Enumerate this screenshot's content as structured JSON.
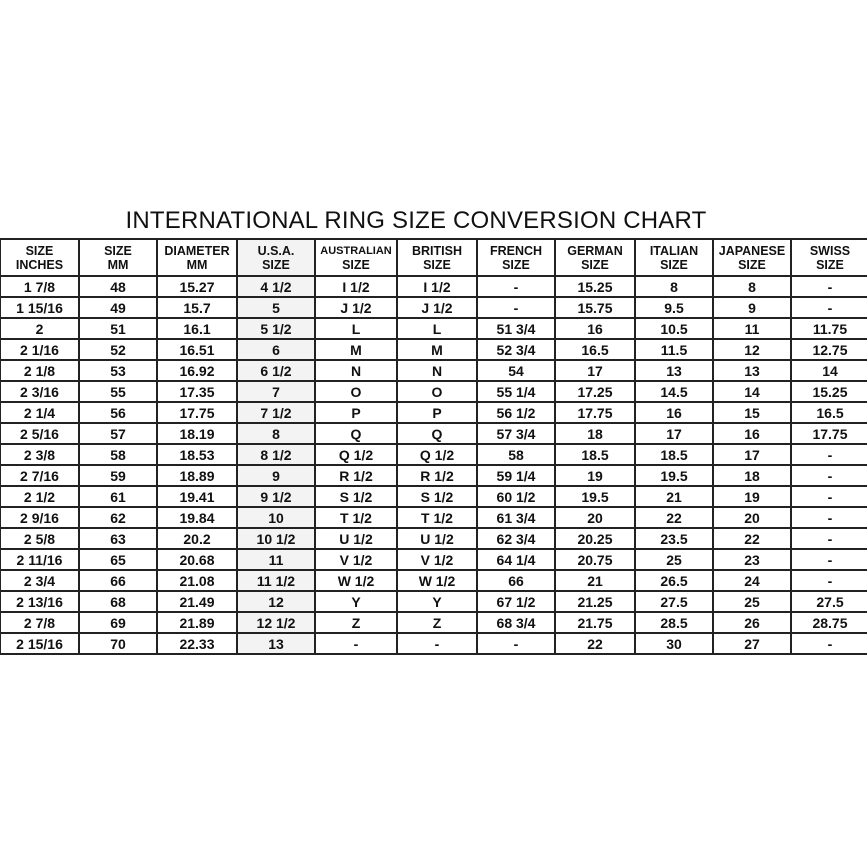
{
  "chart_data": {
    "type": "table",
    "title": "INTERNATIONAL RING SIZE CONVERSION CHART",
    "columns": [
      [
        "SIZE",
        "INCHES"
      ],
      [
        "SIZE",
        "MM"
      ],
      [
        "DIAMETER",
        "MM"
      ],
      [
        "U.S.A.",
        "SIZE"
      ],
      [
        "AUSTRALIAN",
        "SIZE"
      ],
      [
        "BRITISH",
        "SIZE"
      ],
      [
        "FRENCH",
        "SIZE"
      ],
      [
        "GERMAN",
        "SIZE"
      ],
      [
        "ITALIAN",
        "SIZE"
      ],
      [
        "JAPANESE",
        "SIZE"
      ],
      [
        "SWISS",
        "SIZE"
      ]
    ],
    "rows": [
      [
        "1 7/8",
        "48",
        "15.27",
        "4 1/2",
        "I 1/2",
        "I 1/2",
        "-",
        "15.25",
        "8",
        "8",
        "-"
      ],
      [
        "1 15/16",
        "49",
        "15.7",
        "5",
        "J 1/2",
        "J 1/2",
        "-",
        "15.75",
        "9.5",
        "9",
        "-"
      ],
      [
        "2",
        "51",
        "16.1",
        "5 1/2",
        "L",
        "L",
        "51 3/4",
        "16",
        "10.5",
        "11",
        "11.75"
      ],
      [
        "2 1/16",
        "52",
        "16.51",
        "6",
        "M",
        "M",
        "52 3/4",
        "16.5",
        "11.5",
        "12",
        "12.75"
      ],
      [
        "2 1/8",
        "53",
        "16.92",
        "6 1/2",
        "N",
        "N",
        "54",
        "17",
        "13",
        "13",
        "14"
      ],
      [
        "2 3/16",
        "55",
        "17.35",
        "7",
        "O",
        "O",
        "55 1/4",
        "17.25",
        "14.5",
        "14",
        "15.25"
      ],
      [
        "2 1/4",
        "56",
        "17.75",
        "7 1/2",
        "P",
        "P",
        "56 1/2",
        "17.75",
        "16",
        "15",
        "16.5"
      ],
      [
        "2 5/16",
        "57",
        "18.19",
        "8",
        "Q",
        "Q",
        "57 3/4",
        "18",
        "17",
        "16",
        "17.75"
      ],
      [
        "2 3/8",
        "58",
        "18.53",
        "8 1/2",
        "Q 1/2",
        "Q 1/2",
        "58",
        "18.5",
        "18.5",
        "17",
        "-"
      ],
      [
        "2 7/16",
        "59",
        "18.89",
        "9",
        "R 1/2",
        "R 1/2",
        "59 1/4",
        "19",
        "19.5",
        "18",
        "-"
      ],
      [
        "2 1/2",
        "61",
        "19.41",
        "9 1/2",
        "S 1/2",
        "S 1/2",
        "60 1/2",
        "19.5",
        "21",
        "19",
        "-"
      ],
      [
        "2 9/16",
        "62",
        "19.84",
        "10",
        "T 1/2",
        "T 1/2",
        "61 3/4",
        "20",
        "22",
        "20",
        "-"
      ],
      [
        "2 5/8",
        "63",
        "20.2",
        "10 1/2",
        "U 1/2",
        "U 1/2",
        "62 3/4",
        "20.25",
        "23.5",
        "22",
        "-"
      ],
      [
        "2 11/16",
        "65",
        "20.68",
        "11",
        "V 1/2",
        "V 1/2",
        "64 1/4",
        "20.75",
        "25",
        "23",
        "-"
      ],
      [
        "2 3/4",
        "66",
        "21.08",
        "11 1/2",
        "W 1/2",
        "W 1/2",
        "66",
        "21",
        "26.5",
        "24",
        "-"
      ],
      [
        "2 13/16",
        "68",
        "21.49",
        "12",
        "Y",
        "Y",
        "67 1/2",
        "21.25",
        "27.5",
        "25",
        "27.5"
      ],
      [
        "2 7/8",
        "69",
        "21.89",
        "12 1/2",
        "Z",
        "Z",
        "68 3/4",
        "21.75",
        "28.5",
        "26",
        "28.75"
      ],
      [
        "2 15/16",
        "70",
        "22.33",
        "13",
        "-",
        "-",
        "-",
        "22",
        "30",
        "27",
        "-"
      ]
    ],
    "highlight_column_color": "#f3f3f3"
  }
}
